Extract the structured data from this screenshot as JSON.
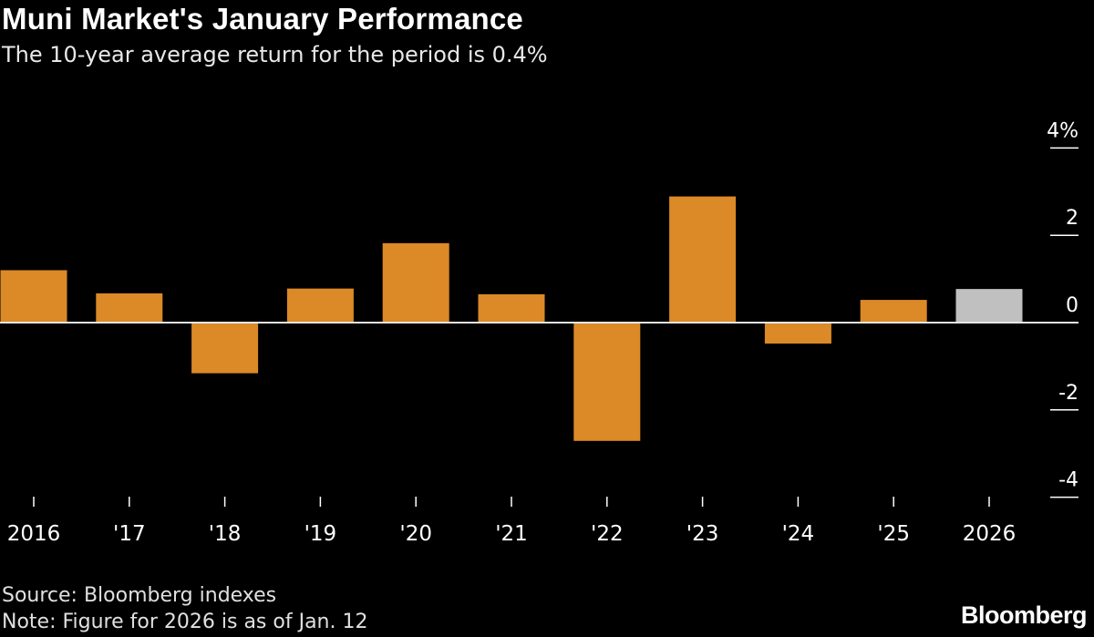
{
  "title": "Muni Market's January Performance",
  "subtitle": "The 10-year average return for the period is 0.4%",
  "source": "Source: Bloomberg indexes",
  "note": "Note: Figure for 2026 is as of Jan. 12",
  "logo": "Bloomberg",
  "chart_data": {
    "type": "bar",
    "categories": [
      "2016",
      "'17",
      "'18",
      "'19",
      "'20",
      "'21",
      "'22",
      "'23",
      "'24",
      "'25",
      "2026"
    ],
    "values": [
      1.2,
      0.67,
      -1.16,
      0.78,
      1.82,
      0.65,
      -2.71,
      2.89,
      -0.48,
      0.52,
      0.77
    ],
    "bar_colors": [
      "#db8a27",
      "#db8a27",
      "#db8a27",
      "#db8a27",
      "#db8a27",
      "#db8a27",
      "#db8a27",
      "#db8a27",
      "#db8a27",
      "#db8a27",
      "#c0c0c0"
    ],
    "yticks": [
      4,
      2,
      0,
      -2,
      -4
    ],
    "ytick_labels": [
      "4%",
      "2",
      "0",
      "-2",
      "-4"
    ],
    "ylim": [
      -4,
      4
    ],
    "yaxis_position": "right",
    "grid": false,
    "xlabel": "",
    "ylabel": ""
  }
}
